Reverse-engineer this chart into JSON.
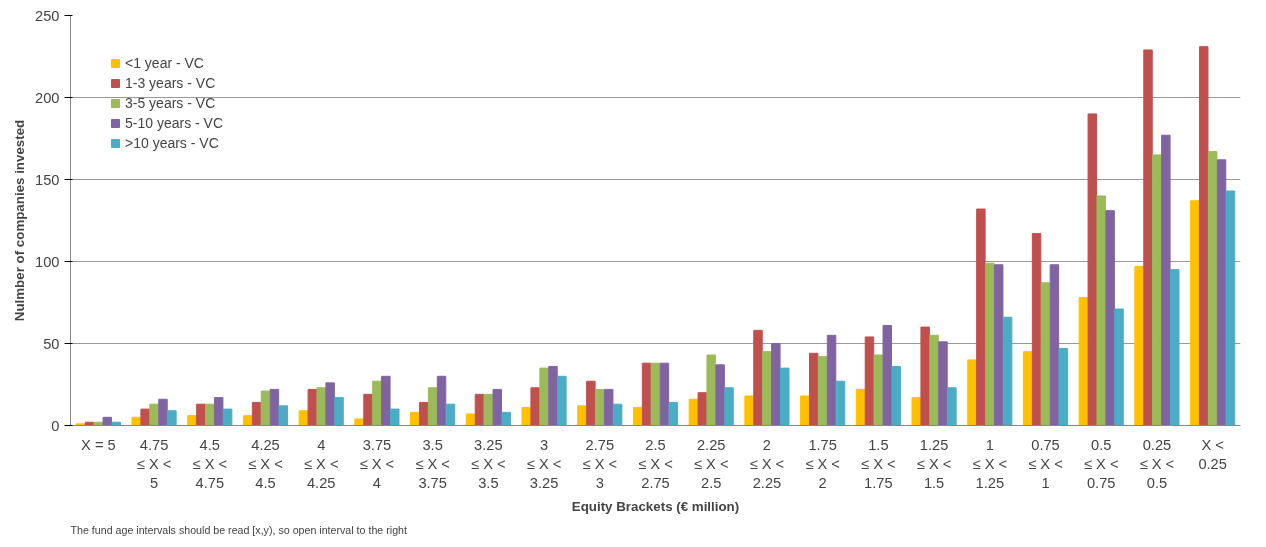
{
  "chart_data": {
    "type": "bar",
    "xlabel": "Equity Brackets (€ million)",
    "ylabel": "Nulmber of companies invested",
    "categories": [
      "X = 5",
      "4.75\n≤ X <\n5",
      "4.5\n≤ X <\n4.75",
      "4.25\n≤ X <\n4.5",
      "4\n≤ X <\n4.25",
      "3.75\n≤ X <\n4",
      "3.5\n≤ X <\n3.75",
      "3.25\n≤ X <\n3.5",
      "3\n≤ X <\n3.25",
      "2.75\n≤ X <\n3",
      "2.5\n≤ X <\n2.75",
      "2.25\n≤ X <\n2.5",
      "2\n≤ X <\n2.25",
      "1.75\n≤ X <\n2",
      "1.5\n≤ X <\n1.75",
      "1.25\n≤ X <\n1.5",
      "1\n≤ X <\n1.25",
      "0.75\n≤ X <\n1",
      "0.5\n≤ X <\n0.75",
      "0.25\n≤ X <\n0.5",
      "X <\n0.25"
    ],
    "series": [
      {
        "name": "<1 year - VC",
        "color": "#ffc000",
        "values": [
          1,
          5,
          6,
          6,
          9,
          4,
          8,
          7,
          11,
          12,
          11,
          16,
          18,
          18,
          22,
          17,
          40,
          45,
          78,
          97,
          137
        ]
      },
      {
        "name": "1-3 years - VC",
        "color": "#c0504d",
        "values": [
          2,
          10,
          13,
          14,
          22,
          19,
          14,
          19,
          23,
          27,
          38,
          20,
          58,
          44,
          54,
          60,
          132,
          117,
          190,
          229,
          231
        ]
      },
      {
        "name": "3-5 years - VC",
        "color": "#9bbb59",
        "values": [
          2,
          13,
          13,
          21,
          23,
          27,
          23,
          19,
          35,
          22,
          38,
          43,
          45,
          42,
          43,
          55,
          99,
          87,
          140,
          165,
          167
        ]
      },
      {
        "name": "5-10 years - VC",
        "color": "#8064a2",
        "values": [
          5,
          16,
          17,
          22,
          26,
          30,
          30,
          22,
          36,
          22,
          38,
          37,
          50,
          55,
          61,
          51,
          98,
          98,
          131,
          177,
          162
        ]
      },
      {
        "name": ">10 years - VC",
        "color": "#4bacc6",
        "values": [
          2,
          9,
          10,
          12,
          17,
          10,
          13,
          8,
          30,
          13,
          14,
          23,
          35,
          27,
          36,
          23,
          66,
          47,
          71,
          95,
          143
        ]
      }
    ],
    "ylim": [
      0,
      250
    ],
    "yticks": [
      0,
      50,
      100,
      150,
      200,
      250
    ],
    "grid": "y",
    "legend": "top left",
    "annotations": [
      "The fund age intervals should be read [x,y), so open interval to the right"
    ]
  }
}
